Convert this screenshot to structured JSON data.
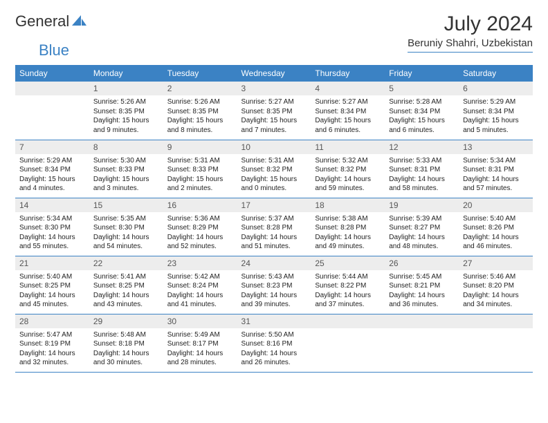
{
  "logo": {
    "text1": "General",
    "text2": "Blue"
  },
  "title": "July 2024",
  "location": "Beruniy Shahri, Uzbekistan",
  "colors": {
    "header_bg": "#3b82c4",
    "header_text": "#ffffff",
    "daynum_bg": "#ededed",
    "border": "#3b82c4"
  },
  "weekday_headers": [
    "Sunday",
    "Monday",
    "Tuesday",
    "Wednesday",
    "Thursday",
    "Friday",
    "Saturday"
  ],
  "weeks": [
    [
      {
        "day": "",
        "sunrise": "",
        "sunset": "",
        "daylight": ""
      },
      {
        "day": "1",
        "sunrise": "5:26 AM",
        "sunset": "8:35 PM",
        "daylight": "15 hours and 9 minutes."
      },
      {
        "day": "2",
        "sunrise": "5:26 AM",
        "sunset": "8:35 PM",
        "daylight": "15 hours and 8 minutes."
      },
      {
        "day": "3",
        "sunrise": "5:27 AM",
        "sunset": "8:35 PM",
        "daylight": "15 hours and 7 minutes."
      },
      {
        "day": "4",
        "sunrise": "5:27 AM",
        "sunset": "8:34 PM",
        "daylight": "15 hours and 6 minutes."
      },
      {
        "day": "5",
        "sunrise": "5:28 AM",
        "sunset": "8:34 PM",
        "daylight": "15 hours and 6 minutes."
      },
      {
        "day": "6",
        "sunrise": "5:29 AM",
        "sunset": "8:34 PM",
        "daylight": "15 hours and 5 minutes."
      }
    ],
    [
      {
        "day": "7",
        "sunrise": "5:29 AM",
        "sunset": "8:34 PM",
        "daylight": "15 hours and 4 minutes."
      },
      {
        "day": "8",
        "sunrise": "5:30 AM",
        "sunset": "8:33 PM",
        "daylight": "15 hours and 3 minutes."
      },
      {
        "day": "9",
        "sunrise": "5:31 AM",
        "sunset": "8:33 PM",
        "daylight": "15 hours and 2 minutes."
      },
      {
        "day": "10",
        "sunrise": "5:31 AM",
        "sunset": "8:32 PM",
        "daylight": "15 hours and 0 minutes."
      },
      {
        "day": "11",
        "sunrise": "5:32 AM",
        "sunset": "8:32 PM",
        "daylight": "14 hours and 59 minutes."
      },
      {
        "day": "12",
        "sunrise": "5:33 AM",
        "sunset": "8:31 PM",
        "daylight": "14 hours and 58 minutes."
      },
      {
        "day": "13",
        "sunrise": "5:34 AM",
        "sunset": "8:31 PM",
        "daylight": "14 hours and 57 minutes."
      }
    ],
    [
      {
        "day": "14",
        "sunrise": "5:34 AM",
        "sunset": "8:30 PM",
        "daylight": "14 hours and 55 minutes."
      },
      {
        "day": "15",
        "sunrise": "5:35 AM",
        "sunset": "8:30 PM",
        "daylight": "14 hours and 54 minutes."
      },
      {
        "day": "16",
        "sunrise": "5:36 AM",
        "sunset": "8:29 PM",
        "daylight": "14 hours and 52 minutes."
      },
      {
        "day": "17",
        "sunrise": "5:37 AM",
        "sunset": "8:28 PM",
        "daylight": "14 hours and 51 minutes."
      },
      {
        "day": "18",
        "sunrise": "5:38 AM",
        "sunset": "8:28 PM",
        "daylight": "14 hours and 49 minutes."
      },
      {
        "day": "19",
        "sunrise": "5:39 AM",
        "sunset": "8:27 PM",
        "daylight": "14 hours and 48 minutes."
      },
      {
        "day": "20",
        "sunrise": "5:40 AM",
        "sunset": "8:26 PM",
        "daylight": "14 hours and 46 minutes."
      }
    ],
    [
      {
        "day": "21",
        "sunrise": "5:40 AM",
        "sunset": "8:25 PM",
        "daylight": "14 hours and 45 minutes."
      },
      {
        "day": "22",
        "sunrise": "5:41 AM",
        "sunset": "8:25 PM",
        "daylight": "14 hours and 43 minutes."
      },
      {
        "day": "23",
        "sunrise": "5:42 AM",
        "sunset": "8:24 PM",
        "daylight": "14 hours and 41 minutes."
      },
      {
        "day": "24",
        "sunrise": "5:43 AM",
        "sunset": "8:23 PM",
        "daylight": "14 hours and 39 minutes."
      },
      {
        "day": "25",
        "sunrise": "5:44 AM",
        "sunset": "8:22 PM",
        "daylight": "14 hours and 37 minutes."
      },
      {
        "day": "26",
        "sunrise": "5:45 AM",
        "sunset": "8:21 PM",
        "daylight": "14 hours and 36 minutes."
      },
      {
        "day": "27",
        "sunrise": "5:46 AM",
        "sunset": "8:20 PM",
        "daylight": "14 hours and 34 minutes."
      }
    ],
    [
      {
        "day": "28",
        "sunrise": "5:47 AM",
        "sunset": "8:19 PM",
        "daylight": "14 hours and 32 minutes."
      },
      {
        "day": "29",
        "sunrise": "5:48 AM",
        "sunset": "8:18 PM",
        "daylight": "14 hours and 30 minutes."
      },
      {
        "day": "30",
        "sunrise": "5:49 AM",
        "sunset": "8:17 PM",
        "daylight": "14 hours and 28 minutes."
      },
      {
        "day": "31",
        "sunrise": "5:50 AM",
        "sunset": "8:16 PM",
        "daylight": "14 hours and 26 minutes."
      },
      {
        "day": "",
        "sunrise": "",
        "sunset": "",
        "daylight": ""
      },
      {
        "day": "",
        "sunrise": "",
        "sunset": "",
        "daylight": ""
      },
      {
        "day": "",
        "sunrise": "",
        "sunset": "",
        "daylight": ""
      }
    ]
  ],
  "labels": {
    "sunrise": "Sunrise:",
    "sunset": "Sunset:",
    "daylight": "Daylight:"
  }
}
